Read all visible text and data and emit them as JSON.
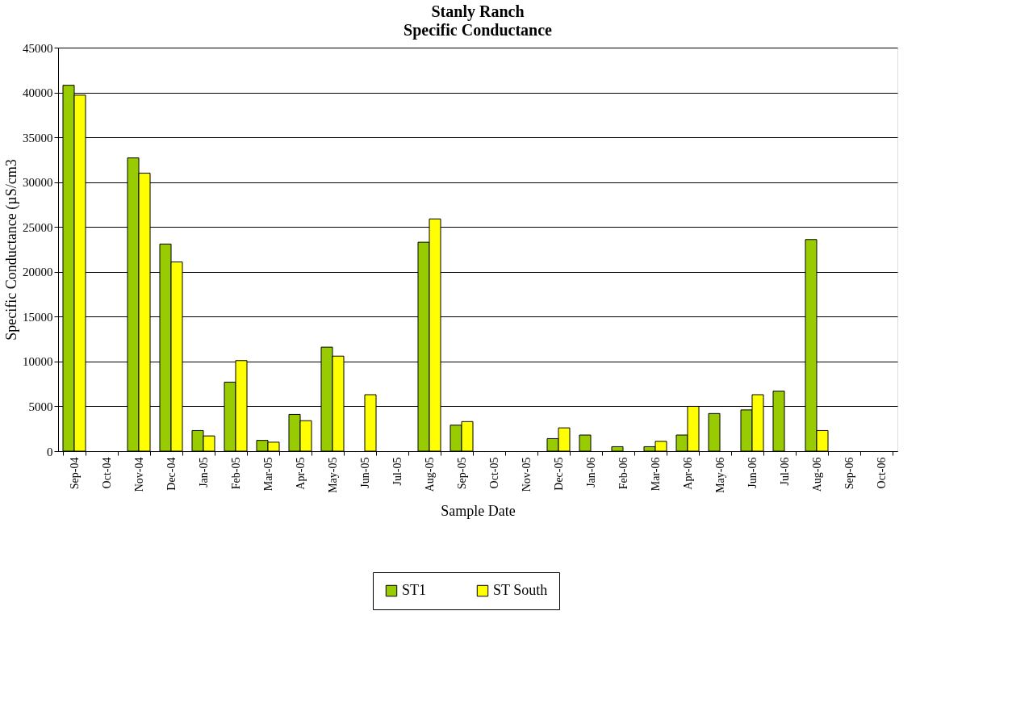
{
  "chart_data": {
    "type": "bar",
    "title": "Stanly Ranch",
    "subtitle": "Specific Conductance",
    "xlabel": "Sample Date",
    "ylabel": "Specific Conductance (µS/cm3",
    "categories": [
      "Sep-04",
      "Oct-04",
      "Nov-04",
      "Dec-04",
      "Jan-05",
      "Feb-05",
      "Mar-05",
      "Apr-05",
      "May-05",
      "Jun-05",
      "Jul-05",
      "Aug-05",
      "Sep-05",
      "Oct-05",
      "Nov-05",
      "Dec-05",
      "Jan-06",
      "Feb-06",
      "Mar-06",
      "Apr-06",
      "May-06",
      "Jun-06",
      "Jul-06",
      "Aug-06",
      "Sep-06",
      "Oct-06"
    ],
    "series": [
      {
        "name": "ST1",
        "color": "#99cc00",
        "values": [
          40800,
          null,
          32700,
          23100,
          2300,
          7700,
          1200,
          4100,
          11600,
          null,
          null,
          23300,
          2900,
          null,
          null,
          1400,
          1800,
          500,
          500,
          1800,
          4200,
          4600,
          6700,
          23600,
          null,
          null
        ]
      },
      {
        "name": "ST South",
        "color": "#ffff00",
        "values": [
          39700,
          null,
          31000,
          21100,
          1700,
          10100,
          1000,
          3400,
          10600,
          6300,
          null,
          25900,
          3300,
          null,
          null,
          2600,
          null,
          null,
          1100,
          5000,
          null,
          6300,
          null,
          2300,
          null,
          null
        ]
      }
    ],
    "ylim": [
      0,
      45000
    ],
    "yticks": [
      0,
      5000,
      10000,
      15000,
      20000,
      25000,
      30000,
      35000,
      40000,
      45000
    ],
    "grid": "y",
    "legend": "bottom"
  }
}
